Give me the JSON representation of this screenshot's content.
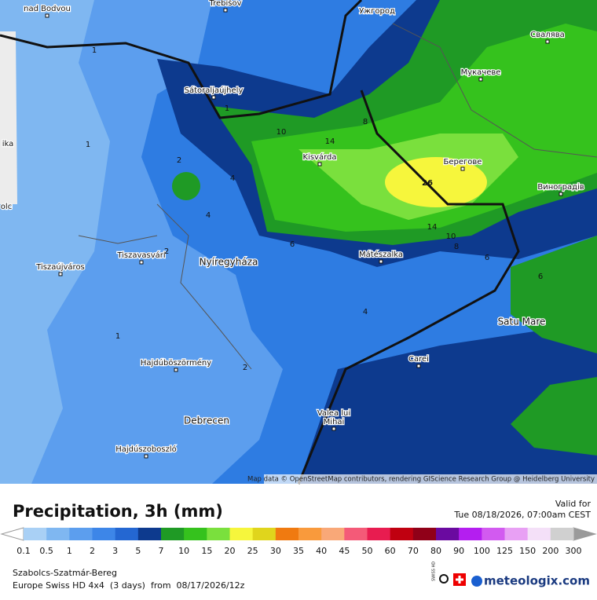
{
  "map": {
    "places": [
      "nad Bodvou",
      "Trebišov",
      "Ужгород",
      "Свалява",
      "Мукачеве",
      "Sátoraljaújhely",
      "Kisvárda",
      "Берегове",
      "Виноградів",
      "Tiszavasvári",
      "Tiszaújváros",
      "Nyíregyháza",
      "Mátészalka",
      "Satu Mare",
      "Carei",
      "Hajdúböszörmény",
      "Debrecen",
      "Valea lui",
      "Mihai",
      "Hajdúszoboszló",
      "ika",
      "olc"
    ],
    "contour_labels": [
      1,
      1,
      1,
      2,
      2,
      4,
      4,
      6,
      8,
      10,
      14,
      26,
      14,
      10,
      8,
      6,
      6,
      4,
      2,
      1
    ],
    "attribution": "Map data © OpenStreetMap contributors, rendering GIScience Research Group @ Heidelberg University"
  },
  "legend": {
    "title": "Precipitation, 3h (mm)",
    "valid_label": "Valid for",
    "valid_time": "Tue 08/18/2026, 07:00am CEST",
    "scale": [
      0.1,
      0.5,
      1,
      2,
      3,
      5,
      7,
      10,
      15,
      20,
      25,
      30,
      35,
      40,
      45,
      50,
      60,
      70,
      80,
      90,
      100,
      125,
      150,
      200,
      300
    ],
    "colors": [
      "#a9d0f5",
      "#7fb7f1",
      "#5c9eee",
      "#3d86e8",
      "#2467d2",
      "#0d3a8e",
      "#1f9a25",
      "#35c21d",
      "#7ae03d",
      "#f6f63c",
      "#e0d51c",
      "#f07a10",
      "#f99a3c",
      "#f9a878",
      "#f45a78",
      "#e81c50",
      "#c00010",
      "#900018",
      "#6a0aa0",
      "#b41ef0",
      "#d25af0",
      "#e8a0f4",
      "#f4e0f8",
      "#d0d0d0"
    ],
    "under_color": "#ffffff",
    "over_color": "#9a9a9a"
  },
  "footer": {
    "region": "Szabolcs-Szatmár-Bereg",
    "model": "Europe Swiss HD 4x4  (3 days)  from  08/17/2026/12z",
    "badge": "SWISS HD",
    "brand": "meteologix.com"
  }
}
